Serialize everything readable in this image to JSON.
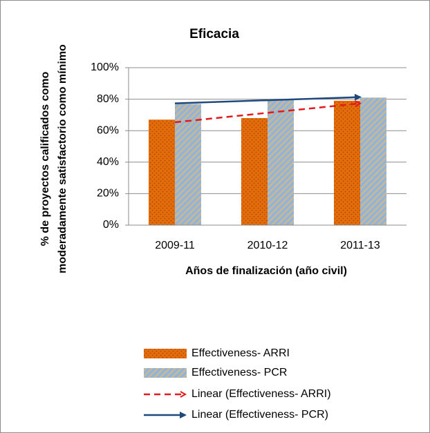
{
  "chart_data": {
    "type": "bar",
    "title": "Eficacia",
    "ylabel": [
      "% de proyectos calificados como",
      "moderadamente satisfactorio como mínimo"
    ],
    "xlabel": "Años de finalización (año civil)",
    "categories": [
      "2009-11",
      "2010-12",
      "2011-13"
    ],
    "series": [
      {
        "name": "Effectiveness- ARRI",
        "color": "#e46c0a",
        "pattern_color": "#a84a06",
        "pattern": "dots",
        "values": [
          67,
          68,
          79
        ]
      },
      {
        "name": "Effectiveness- PCR",
        "color": "#c4b896",
        "pattern_color": "#8db3e2",
        "pattern": "stripes",
        "values": [
          77,
          80,
          81
        ]
      }
    ],
    "trendlines": [
      {
        "name": "Linear (Effectiveness- ARRI)",
        "series": 0,
        "color": "#e31a1c",
        "dashed": true
      },
      {
        "name": "Linear (Effectiveness- PCR)",
        "series": 1,
        "color": "#1f497d",
        "dashed": false
      }
    ],
    "ylim": [
      0,
      100
    ],
    "yticks": [
      {
        "value": 0,
        "label": "0%"
      },
      {
        "value": 20,
        "label": "20%"
      },
      {
        "value": 40,
        "label": "40%"
      },
      {
        "value": 60,
        "label": "60%"
      },
      {
        "value": 80,
        "label": "80%"
      },
      {
        "value": 100,
        "label": "100%"
      }
    ],
    "grid": true
  }
}
